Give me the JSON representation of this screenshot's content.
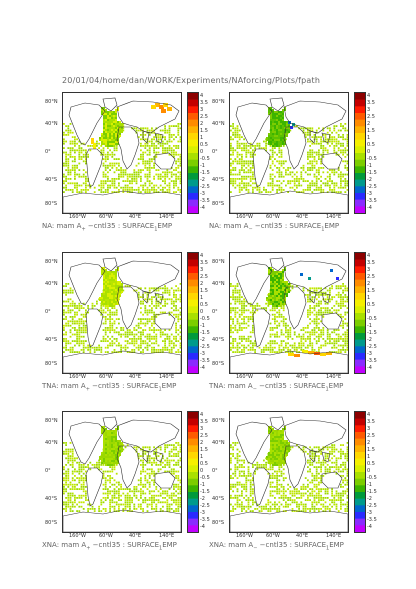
{
  "header": {
    "path": "20/01/04/home/dan/WORK/Experiments/NAforcing/Plots/fpath"
  },
  "axes": {
    "yticks": [
      "80°N",
      "40°N",
      "0°",
      "40°S",
      "80°S"
    ],
    "xticks": [
      "160°W",
      "60°W",
      "40°E",
      "140°E"
    ]
  },
  "colorbar": {
    "ticks": [
      "4",
      "3.5",
      "3",
      "2.5",
      "2",
      "1.5",
      "1",
      "0.5",
      "0",
      "-0.5",
      "-1",
      "-1.5",
      "-2",
      "-2.5",
      "-3",
      "-3.5",
      "-4"
    ],
    "colors": [
      "#8c0000",
      "#c40000",
      "#ff1a00",
      "#ff5a00",
      "#ff8c00",
      "#ffb400",
      "#ffd700",
      "#f5f000",
      "#d8f000",
      "#a9e000",
      "#7ccd00",
      "#3cb400",
      "#009a3c",
      "#009a8c",
      "#0066cc",
      "#2a2aff",
      "#8a2aff",
      "#c000ff"
    ]
  },
  "chart_data": [
    {
      "type": "heatmap",
      "caption_prefix": "NA: mam A",
      "caption_sub": "+",
      "caption_suffix": " −cntl35 : SURFACE",
      "caption_sub2": "1",
      "caption_end": "EMP",
      "variant": "warm-na"
    },
    {
      "type": "heatmap",
      "caption_prefix": "NA: mam A",
      "caption_sub": "−",
      "caption_suffix": " −cntl35 : SURFACE",
      "caption_sub2": "1",
      "caption_end": "EMP",
      "variant": "cool-na"
    },
    {
      "type": "heatmap",
      "caption_prefix": "TNA: mam A",
      "caption_sub": "+",
      "caption_suffix": " −cntl35 : SURFACE",
      "caption_sub2": "1",
      "caption_end": "EMP",
      "variant": "plain"
    },
    {
      "type": "heatmap",
      "caption_prefix": "TNA: mam A",
      "caption_sub": "−",
      "caption_suffix": " −cntl35 : SURFACE",
      "caption_sub2": "1",
      "caption_end": "EMP",
      "variant": "south-warm"
    },
    {
      "type": "heatmap",
      "caption_prefix": "XNA: mam A",
      "caption_sub": "+",
      "caption_suffix": " −cntl35 : SURFACE",
      "caption_sub2": "1",
      "caption_end": "EMP",
      "variant": "plain-green"
    },
    {
      "type": "heatmap",
      "caption_prefix": "XNA: mam A",
      "caption_sub": "−",
      "caption_suffix": " −cntl35 : SURFACE",
      "caption_sub2": "1",
      "caption_end": "EMP",
      "variant": "plain-green"
    }
  ]
}
